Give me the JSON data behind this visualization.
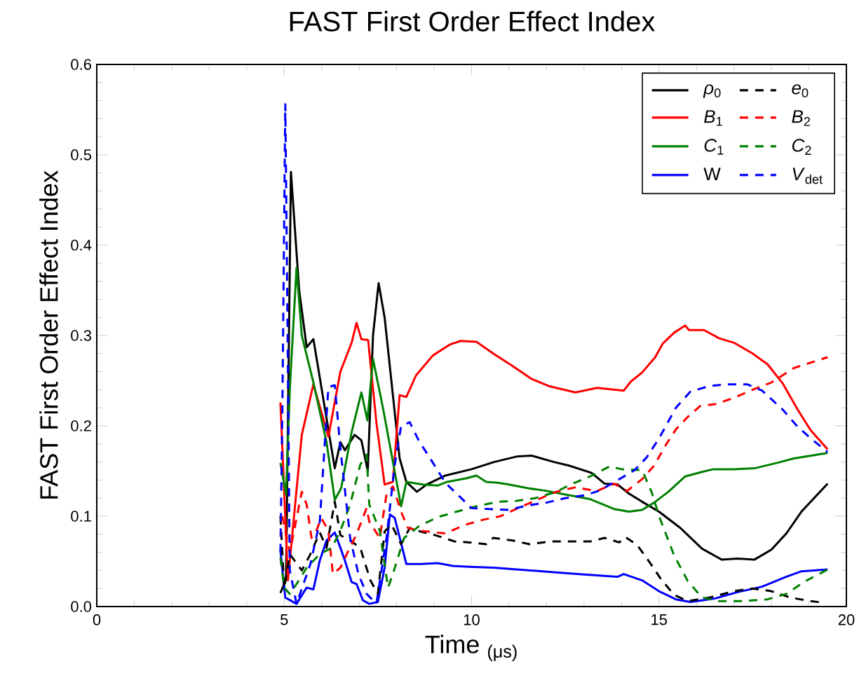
{
  "chart_data": {
    "type": "line",
    "title": "FAST First Order Effect Index",
    "xlabel": "Time $_{(μs)}$",
    "ylabel": "FAST First Order Effect Index",
    "xlim": [
      0,
      20
    ],
    "ylim": [
      0,
      0.6
    ],
    "xticks": [
      0,
      5,
      10,
      15,
      20
    ],
    "yticks": [
      {
        "value": 0,
        "label": "0.0"
      },
      0.1,
      0.2,
      0.3,
      0.4,
      0.5,
      0.6
    ],
    "legend": "top right",
    "series": [
      {
        "name": "*ρ*$_{0}$",
        "color": "#000000",
        "line_style": "solid",
        "x": [
          4.9,
          5.05,
          5.18,
          5.4,
          5.6,
          5.78,
          6.35,
          6.5,
          6.62,
          6.88,
          7.06,
          7.23,
          7.37,
          7.52,
          7.68,
          8.08,
          8.26,
          8.54,
          8.8,
          9.3,
          10,
          10.6,
          11.2,
          11.6,
          12.2,
          12.6,
          13.2,
          13.55,
          13.9,
          14.2,
          14.55,
          15.0,
          15.57,
          16.15,
          16.67,
          17.1,
          17.55,
          18.0,
          18.4,
          18.8,
          19.5
        ],
        "values": [
          0.015,
          0.03,
          0.481,
          0.35,
          0.287,
          0.296,
          0.153,
          0.182,
          0.173,
          0.19,
          0.184,
          0.15,
          0.3,
          0.358,
          0.32,
          0.164,
          0.138,
          0.127,
          0.135,
          0.145,
          0.152,
          0.16,
          0.166,
          0.167,
          0.16,
          0.156,
          0.148,
          0.136,
          0.135,
          0.125,
          0.116,
          0.105,
          0.087,
          0.064,
          0.052,
          0.053,
          0.052,
          0.063,
          0.081,
          0.105,
          0.136
        ]
      },
      {
        "name": "*B*$_{1}$",
        "color": "#ff0000",
        "line_style": "solid",
        "x": [
          4.9,
          5.1,
          5.47,
          5.78,
          6.18,
          6.5,
          6.8,
          6.93,
          7.06,
          7.24,
          7.46,
          7.68,
          7.9,
          8.08,
          8.26,
          8.52,
          8.97,
          9.42,
          9.71,
          10.13,
          10.58,
          11.1,
          11.6,
          12.06,
          12.77,
          13.35,
          14.06,
          14.25,
          14.55,
          14.9,
          15.1,
          15.4,
          15.7,
          15.8,
          16.2,
          16.6,
          17.0,
          17.5,
          17.9,
          18.3,
          18.7,
          19.05,
          19.5
        ],
        "values": [
          0.226,
          0.029,
          0.19,
          0.246,
          0.188,
          0.26,
          0.292,
          0.314,
          0.296,
          0.295,
          0.204,
          0.135,
          0.138,
          0.234,
          0.232,
          0.256,
          0.278,
          0.29,
          0.294,
          0.293,
          0.28,
          0.266,
          0.252,
          0.244,
          0.237,
          0.242,
          0.239,
          0.249,
          0.259,
          0.276,
          0.291,
          0.303,
          0.311,
          0.306,
          0.306,
          0.297,
          0.292,
          0.28,
          0.268,
          0.247,
          0.218,
          0.195,
          0.174
        ]
      },
      {
        "name": "*C*$_{1}$",
        "color": "#008000",
        "line_style": "solid",
        "x": [
          4.9,
          5.05,
          5.15,
          5.33,
          5.47,
          5.78,
          6.13,
          6.35,
          6.52,
          6.8,
          7.06,
          7.22,
          7.37,
          7.64,
          8.12,
          8.26,
          8.7,
          9.1,
          9.35,
          9.87,
          10.13,
          10.39,
          10.7,
          11.0,
          11.5,
          12.0,
          12.5,
          13.15,
          13.8,
          14.2,
          14.55,
          14.87,
          15.25,
          15.7,
          16.15,
          16.45,
          17.0,
          17.55,
          18.15,
          18.6,
          19.5
        ],
        "values": [
          0.159,
          0.124,
          0.241,
          0.375,
          0.3,
          0.248,
          0.182,
          0.118,
          0.131,
          0.193,
          0.237,
          0.206,
          0.274,
          0.219,
          0.111,
          0.138,
          0.135,
          0.134,
          0.138,
          0.142,
          0.145,
          0.138,
          0.137,
          0.135,
          0.131,
          0.128,
          0.124,
          0.119,
          0.108,
          0.105,
          0.107,
          0.115,
          0.127,
          0.144,
          0.149,
          0.152,
          0.152,
          0.153,
          0.159,
          0.164,
          0.17
        ]
      },
      {
        "name": "W",
        "color": "#0000ff",
        "line_style": "solid",
        "x": [
          4.9,
          5.03,
          5.33,
          5.6,
          5.78,
          5.95,
          6.13,
          6.35,
          6.5,
          6.62,
          6.8,
          6.93,
          7.1,
          7.27,
          7.5,
          7.68,
          7.82,
          7.95,
          8.26,
          8.64,
          9.1,
          9.5,
          9.94,
          10.6,
          11.2,
          11.9,
          12.5,
          13.15,
          13.9,
          14.06,
          14.55,
          15.0,
          15.45,
          15.84,
          16.5,
          17.1,
          17.75,
          18.4,
          18.8,
          19.5
        ],
        "values": [
          0.062,
          0.01,
          0.003,
          0.021,
          0.019,
          0.051,
          0.073,
          0.082,
          0.065,
          0.051,
          0.027,
          0.025,
          0.007,
          0.003,
          0.005,
          0.043,
          0.102,
          0.098,
          0.047,
          0.047,
          0.048,
          0.045,
          0.044,
          0.043,
          0.041,
          0.039,
          0.037,
          0.035,
          0.033,
          0.036,
          0.029,
          0.017,
          0.008,
          0.005,
          0.009,
          0.016,
          0.022,
          0.033,
          0.039,
          0.041
        ]
      },
      {
        "name": "*e*$_{0}$",
        "color": "#000000",
        "line_style": "dashed",
        "x": [
          4.9,
          5.0,
          5.15,
          5.47,
          5.7,
          5.95,
          6.13,
          6.35,
          6.5,
          6.76,
          7.03,
          7.3,
          7.5,
          7.68,
          7.86,
          8.12,
          8.35,
          8.64,
          9.03,
          9.55,
          9.94,
          10.39,
          10.58,
          11.1,
          11.55,
          12.1,
          12.77,
          13.16,
          13.55,
          13.94,
          14.1,
          14.42,
          14.75,
          15.06,
          15.4,
          15.77,
          16.35,
          17.0,
          17.5,
          18.0,
          18.5,
          19.05,
          19.45
        ],
        "values": [
          0.1,
          0.02,
          0.058,
          0.04,
          0.058,
          0.082,
          0.065,
          0.116,
          0.079,
          0.073,
          0.065,
          0.029,
          0.014,
          0.083,
          0.091,
          0.069,
          0.087,
          0.083,
          0.079,
          0.072,
          0.071,
          0.069,
          0.076,
          0.073,
          0.069,
          0.072,
          0.072,
          0.072,
          0.076,
          0.071,
          0.077,
          0.068,
          0.049,
          0.03,
          0.013,
          0.006,
          0.01,
          0.017,
          0.02,
          0.017,
          0.01,
          0.006,
          0.004
        ]
      },
      {
        "name": "*B*$_{2}$",
        "color": "#ff0000",
        "line_style": "dashed",
        "x": [
          4.95,
          5.15,
          5.47,
          5.6,
          5.73,
          5.86,
          5.99,
          6.18,
          6.3,
          6.5,
          6.67,
          6.93,
          7.2,
          7.27,
          7.55,
          7.73,
          7.9,
          8.12,
          8.3,
          8.6,
          9.04,
          9.3,
          9.87,
          10.3,
          10.77,
          11.35,
          11.8,
          12.26,
          12.77,
          13.16,
          13.3,
          13.8,
          14.15,
          14.55,
          14.87,
          15.2,
          15.45,
          15.77,
          16.1,
          16.5,
          17.0,
          17.5,
          18.0,
          18.6,
          19.5
        ],
        "values": [
          0.1,
          0.06,
          0.127,
          0.113,
          0.076,
          0.084,
          0.098,
          0.084,
          0.036,
          0.043,
          0.058,
          0.08,
          0.109,
          0.094,
          0.076,
          0.124,
          0.133,
          0.105,
          0.087,
          0.084,
          0.082,
          0.081,
          0.091,
          0.096,
          0.1,
          0.111,
          0.119,
          0.127,
          0.132,
          0.129,
          0.127,
          0.136,
          0.128,
          0.141,
          0.156,
          0.18,
          0.196,
          0.21,
          0.222,
          0.224,
          0.231,
          0.24,
          0.248,
          0.264,
          0.276
        ]
      },
      {
        "name": "*C*$_{2}$",
        "color": "#008000",
        "line_style": "dashed",
        "x": [
          4.9,
          5.0,
          5.15,
          5.33,
          5.6,
          5.95,
          6.27,
          6.5,
          6.76,
          7.03,
          7.2,
          7.27,
          7.55,
          7.77,
          7.9,
          8.2,
          8.6,
          9.1,
          9.6,
          10.13,
          10.7,
          11.2,
          11.7,
          12.26,
          12.64,
          13.16,
          13.68,
          14.0,
          14.55,
          14.8,
          15.03,
          15.4,
          15.77,
          16.15,
          16.6,
          17.23,
          17.9,
          18.4,
          18.9,
          19.5
        ],
        "values": [
          0.054,
          0.021,
          0.014,
          0.025,
          0.043,
          0.058,
          0.065,
          0.084,
          0.113,
          0.157,
          0.168,
          0.113,
          0.084,
          0.021,
          0.036,
          0.076,
          0.089,
          0.099,
          0.105,
          0.111,
          0.116,
          0.117,
          0.12,
          0.127,
          0.135,
          0.144,
          0.155,
          0.152,
          0.151,
          0.127,
          0.097,
          0.057,
          0.028,
          0.01,
          0.006,
          0.006,
          0.008,
          0.014,
          0.028,
          0.041
        ]
      },
      {
        "name": "*V*$_{det}$",
        "color": "#0000ff",
        "line_style": "dashed",
        "x": [
          4.9,
          4.95,
          5.03,
          5.08,
          5.15,
          5.33,
          5.7,
          5.95,
          6.18,
          6.35,
          6.5,
          6.76,
          6.98,
          7.2,
          7.46,
          7.73,
          7.95,
          8.12,
          8.35,
          8.6,
          8.97,
          9.3,
          9.7,
          10.0,
          10.45,
          11.0,
          11.5,
          12.0,
          12.5,
          13.0,
          13.4,
          13.9,
          14.35,
          14.67,
          15.0,
          15.45,
          15.84,
          16.35,
          16.8,
          17.35,
          17.75,
          18.3,
          18.7,
          19.05,
          19.5
        ],
        "values": [
          0.06,
          0.21,
          0.556,
          0.35,
          0.04,
          0.003,
          0.047,
          0.094,
          0.243,
          0.245,
          0.175,
          0.076,
          0.036,
          0.014,
          0.003,
          0.076,
          0.157,
          0.2,
          0.204,
          0.183,
          0.159,
          0.137,
          0.121,
          0.109,
          0.108,
          0.107,
          0.112,
          0.115,
          0.12,
          0.123,
          0.128,
          0.14,
          0.151,
          0.165,
          0.186,
          0.22,
          0.238,
          0.244,
          0.246,
          0.246,
          0.239,
          0.218,
          0.199,
          0.186,
          0.171
        ]
      }
    ]
  }
}
